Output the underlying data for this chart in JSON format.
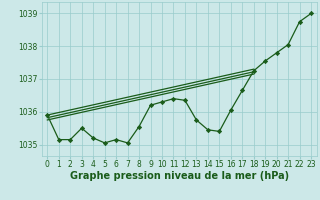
{
  "hours": [
    0,
    1,
    2,
    3,
    4,
    5,
    6,
    7,
    8,
    9,
    10,
    11,
    12,
    13,
    14,
    15,
    16,
    17,
    18,
    19,
    20,
    21,
    22,
    23
  ],
  "pressure": [
    1035.9,
    1035.15,
    1035.15,
    1035.5,
    1035.2,
    1035.05,
    1035.15,
    1035.05,
    1035.55,
    1036.2,
    1036.3,
    1036.4,
    1036.35,
    1035.75,
    1035.45,
    1035.4,
    1036.05,
    1036.65,
    1037.25,
    1037.55,
    1037.8,
    1038.05,
    1038.75,
    1039.0
  ],
  "trend1_x": [
    0,
    18
  ],
  "trend1_y": [
    1035.9,
    1037.3
  ],
  "trend2_x": [
    0,
    18
  ],
  "trend2_y": [
    1035.82,
    1037.22
  ],
  "trend3_x": [
    0,
    18
  ],
  "trend3_y": [
    1035.75,
    1037.15
  ],
  "background_color": "#cce8e8",
  "grid_color": "#99cccc",
  "line_color": "#1a5c1a",
  "marker_color": "#1a5c1a",
  "xlabel": "Graphe pression niveau de la mer (hPa)",
  "ylim": [
    1034.65,
    1039.35
  ],
  "xlim": [
    -0.5,
    23.5
  ],
  "yticks": [
    1035,
    1036,
    1037,
    1038,
    1039
  ],
  "xtick_labels": [
    "0",
    "1",
    "2",
    "3",
    "4",
    "5",
    "6",
    "7",
    "8",
    "9",
    "10",
    "11",
    "12",
    "13",
    "14",
    "15",
    "16",
    "17",
    "18",
    "19",
    "20",
    "21",
    "22",
    "23"
  ],
  "label_fontsize": 7,
  "tick_fontsize": 5.5
}
